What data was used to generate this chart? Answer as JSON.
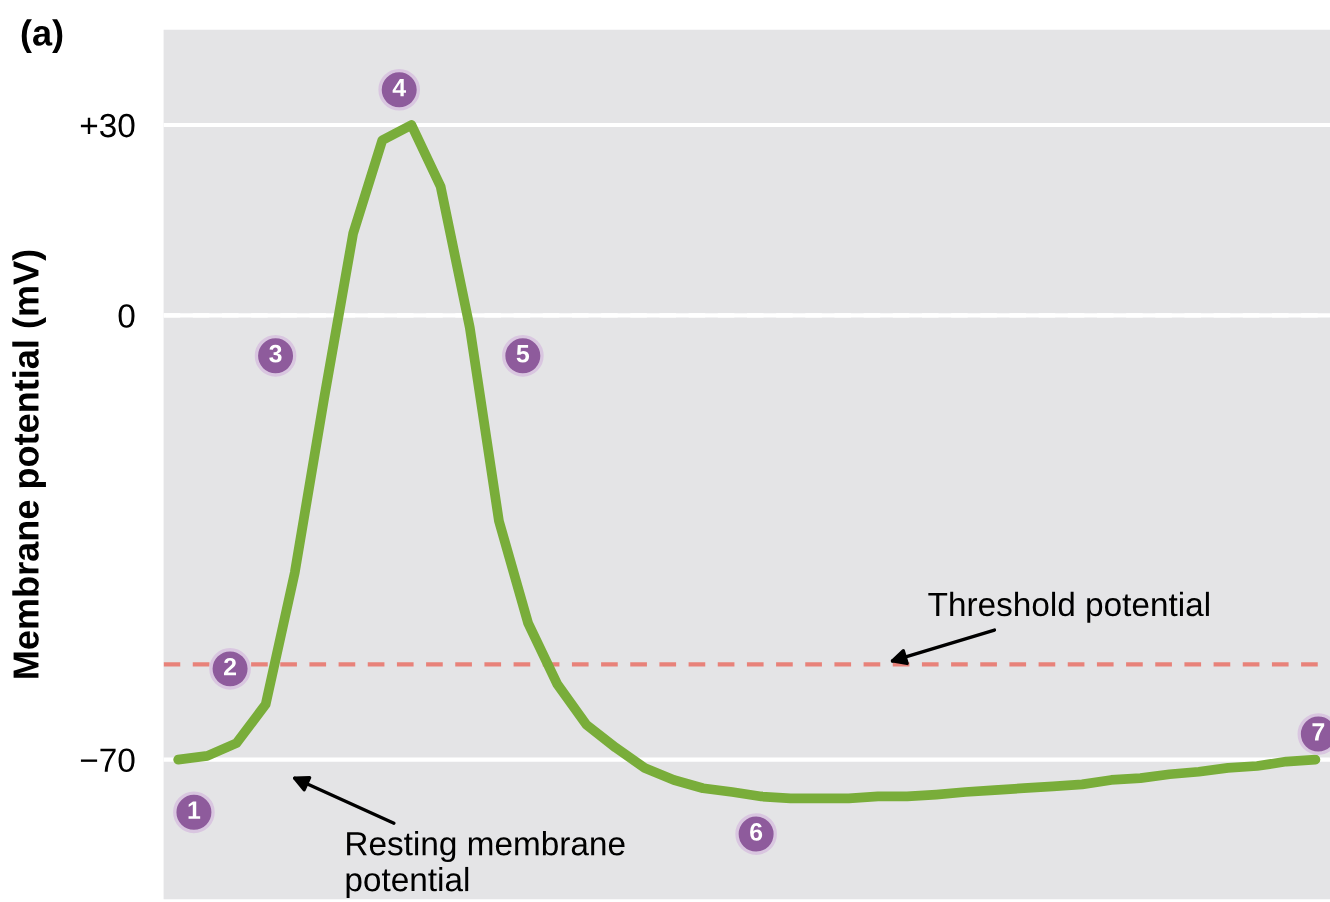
{
  "chart_data": {
    "type": "line",
    "title": "(a)",
    "ylabel": "Membrane potential (mV)",
    "categories": [
      null,
      null,
      null,
      null,
      null,
      null,
      null,
      null,
      null,
      null,
      null,
      null,
      null,
      null,
      null,
      null,
      null,
      null,
      null,
      null,
      null,
      null,
      null,
      null,
      null,
      null,
      null,
      null,
      null,
      null,
      null,
      null,
      null,
      null,
      null,
      null,
      null,
      null,
      null,
      null
    ],
    "series": [
      {
        "color": "#79ad3a",
        "values": [
          -70,
          -69.4,
          -67.4,
          -61.3,
          -40.5,
          -13.2,
          12.9,
          27.6,
          30,
          20.3,
          -1.9,
          -32.4,
          -48.5,
          -58.1,
          -64.5,
          -68.1,
          -71.3,
          -73.2,
          -74.5,
          -75.1,
          -75.8,
          -76.1,
          -76.1,
          -76.1,
          -75.8,
          -75.8,
          -75.5,
          -75.1,
          -74.8,
          -74.5,
          -74.2,
          -73.9,
          -73.2,
          -72.9,
          -72.3,
          -71.9,
          -71.3,
          -71,
          -70.3,
          -70
        ]
      }
    ],
    "ylim": [
      -92,
      45
    ],
    "yticks": [
      {
        "value": 30,
        "label": "+30"
      },
      0,
      {
        "value": -70,
        "label": "−70"
      }
    ],
    "tick_labels": "y",
    "grid": "y",
    "marker": "none",
    "line_style": "solid",
    "ref_lines": [
      {
        "axis": "y",
        "value": 0,
        "color": "#ffffff",
        "line_style": "dashed"
      },
      {
        "axis": "y",
        "value": -55,
        "color": "#e8827a",
        "line_style": "dashed",
        "label": "Threshold potential"
      }
    ],
    "annotations": [
      "1",
      "2",
      "3",
      "4",
      "5",
      "6",
      "7",
      "Resting membrane\npotential"
    ]
  }
}
